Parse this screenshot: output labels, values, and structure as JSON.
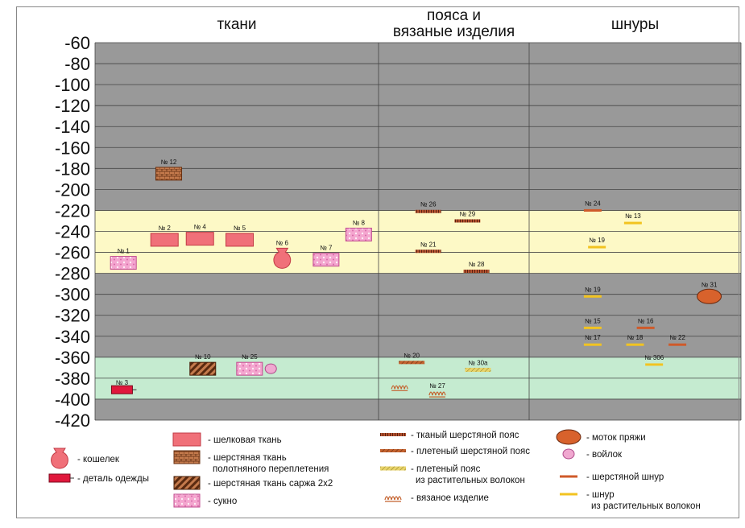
{
  "chart_data": {
    "type": "stratigraphic-chart",
    "columns": [
      "ткани",
      "пояса и вязаные изделия",
      "шнуры"
    ],
    "column_titles": [
      [
        "ткани"
      ],
      [
        "пояса и",
        "вязаные изделия"
      ],
      [
        "шнуры"
      ]
    ],
    "y_ticks": [
      -60,
      -80,
      -100,
      -120,
      -140,
      -160,
      -180,
      -200,
      -220,
      -240,
      -260,
      -280,
      -300,
      -320,
      -340,
      -360,
      -380,
      -400,
      -420
    ],
    "ylim": [
      -60,
      -420
    ],
    "bands": [
      {
        "from": -220,
        "to": -280,
        "color": "#fdf9c6"
      },
      {
        "from": -360,
        "to": -400,
        "color": "#c5ebd0"
      }
    ],
    "items": [
      {
        "label": "№ 12",
        "column": 0,
        "x_frac": 0.26,
        "depth": -185,
        "type": "wool-plain"
      },
      {
        "label": "№ 2",
        "column": 0,
        "x_frac": 0.245,
        "depth": -248,
        "type": "silk"
      },
      {
        "label": "№ 4",
        "column": 0,
        "x_frac": 0.37,
        "depth": -247,
        "type": "silk"
      },
      {
        "label": "№ 5",
        "column": 0,
        "x_frac": 0.51,
        "depth": -248,
        "type": "silk"
      },
      {
        "label": "№ 8",
        "column": 0,
        "x_frac": 0.93,
        "depth": -243,
        "type": "felt-cloth"
      },
      {
        "label": "№ 1",
        "column": 0,
        "x_frac": 0.1,
        "depth": -270,
        "type": "felt-cloth"
      },
      {
        "label": "№ 6",
        "column": 0,
        "x_frac": 0.66,
        "depth": -266,
        "type": "pouch"
      },
      {
        "label": "№ 7",
        "column": 0,
        "x_frac": 0.815,
        "depth": -267,
        "type": "felt-cloth"
      },
      {
        "label": "№ 10",
        "column": 0,
        "x_frac": 0.38,
        "depth": -371,
        "type": "wool-twill"
      },
      {
        "label": "№ 25",
        "column": 0,
        "x_frac": 0.545,
        "depth": -371,
        "type": "felt-cloth"
      },
      {
        "label": "",
        "column": 0,
        "x_frac": 0.62,
        "depth": -371,
        "type": "felt-ball"
      },
      {
        "label": "№ 3",
        "column": 0,
        "x_frac": 0.095,
        "depth": -391,
        "type": "garment"
      },
      {
        "label": "№ 26",
        "column": 1,
        "x_frac": 0.33,
        "depth": -221,
        "type": "woven-belt"
      },
      {
        "label": "№ 29",
        "column": 1,
        "x_frac": 0.59,
        "depth": -230,
        "type": "woven-belt"
      },
      {
        "label": "№ 21",
        "column": 1,
        "x_frac": 0.33,
        "depth": -259,
        "type": "woven-belt"
      },
      {
        "label": "№ 28",
        "column": 1,
        "x_frac": 0.65,
        "depth": -278,
        "type": "woven-belt"
      },
      {
        "label": "№ 20",
        "column": 1,
        "x_frac": 0.22,
        "depth": -365,
        "type": "braided-belt"
      },
      {
        "label": "№ 30а",
        "column": 1,
        "x_frac": 0.66,
        "depth": -372,
        "type": "plant-belt"
      },
      {
        "label": "",
        "column": 1,
        "x_frac": 0.14,
        "depth": -388,
        "type": "knitted"
      },
      {
        "label": "№ 27",
        "column": 1,
        "x_frac": 0.39,
        "depth": -394,
        "type": "knitted"
      },
      {
        "label": "№ 24",
        "column": 2,
        "x_frac": 0.3,
        "depth": -220,
        "type": "wool-cord"
      },
      {
        "label": "№ 13",
        "column": 2,
        "x_frac": 0.49,
        "depth": -232,
        "type": "plant-cord"
      },
      {
        "label": "№ 19",
        "column": 2,
        "x_frac": 0.32,
        "depth": -255,
        "type": "plant-cord"
      },
      {
        "label": "№ 19",
        "column": 2,
        "x_frac": 0.3,
        "depth": -302,
        "type": "plant-cord"
      },
      {
        "label": "№ 31",
        "column": 2,
        "x_frac": 0.85,
        "depth": -302,
        "type": "yarn-skein"
      },
      {
        "label": "№ 15",
        "column": 2,
        "x_frac": 0.3,
        "depth": -332,
        "type": "plant-cord"
      },
      {
        "label": "№ 16",
        "column": 2,
        "x_frac": 0.55,
        "depth": -332,
        "type": "wool-cord"
      },
      {
        "label": "№ 17",
        "column": 2,
        "x_frac": 0.3,
        "depth": -348,
        "type": "plant-cord"
      },
      {
        "label": "№ 18",
        "column": 2,
        "x_frac": 0.5,
        "depth": -348,
        "type": "plant-cord"
      },
      {
        "label": "№ 22",
        "column": 2,
        "x_frac": 0.7,
        "depth": -348,
        "type": "wool-cord"
      },
      {
        "label": "№ 306",
        "column": 2,
        "x_frac": 0.59,
        "depth": -367,
        "type": "plant-cord"
      }
    ],
    "legend": [
      {
        "type": "pouch",
        "text": [
          "- кошелек"
        ]
      },
      {
        "type": "garment",
        "text": [
          "- деталь одежды"
        ]
      },
      {
        "type": "silk",
        "text": [
          "- шелковая ткань"
        ]
      },
      {
        "type": "wool-plain",
        "text": [
          "- шерстяная ткань",
          "полотняного переплетения"
        ]
      },
      {
        "type": "wool-twill",
        "text": [
          "- шерстяная ткань саржа 2х2"
        ]
      },
      {
        "type": "felt-cloth",
        "text": [
          "- сукно"
        ]
      },
      {
        "type": "woven-belt",
        "text": [
          "- тканый шерстяной пояс"
        ]
      },
      {
        "type": "braided-belt",
        "text": [
          "- плетеный шерстяной пояс"
        ]
      },
      {
        "type": "plant-belt",
        "text": [
          "- плетеный  пояс",
          "из растительных волокон"
        ]
      },
      {
        "type": "knitted",
        "text": [
          "- вязаное изделие"
        ]
      },
      {
        "type": "yarn-skein",
        "text": [
          "- моток пряжи"
        ]
      },
      {
        "type": "felt-ball",
        "text": [
          "- войлок"
        ]
      },
      {
        "type": "wool-cord",
        "text": [
          "-  шерстяной шнур"
        ]
      },
      {
        "type": "plant-cord",
        "text": [
          "-  шнур",
          "из растительных волокон"
        ]
      }
    ]
  },
  "colors": {
    "plot_bg": "#999999",
    "grid": "#444444",
    "silk": "#f07079",
    "silk_stroke": "#c23a45",
    "wool_brown": "#c47a4c",
    "twill_dark": "#5a2a10",
    "felt_pink": "#f4a6cf",
    "garment": "#e0183c",
    "wool_cord": "#cf5a2a",
    "plant_cord": "#f2c320",
    "yarn": "#d8622c"
  }
}
